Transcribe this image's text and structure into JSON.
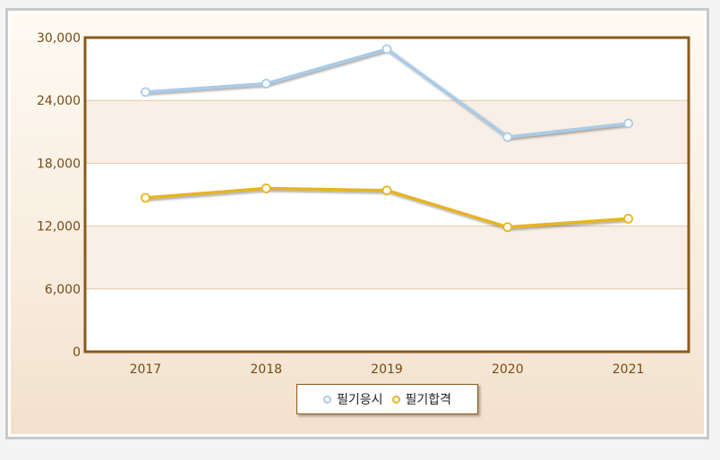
{
  "chart_data": {
    "type": "line",
    "categories": [
      "2017",
      "2018",
      "2019",
      "2020",
      "2021"
    ],
    "series": [
      {
        "name": "필기응시",
        "values": [
          24800,
          25600,
          28900,
          20500,
          21800
        ],
        "color": "#a9cbe8"
      },
      {
        "name": "필기합격",
        "values": [
          14700,
          15600,
          15400,
          11900,
          12700
        ],
        "color": "#e6b422"
      }
    ],
    "yticks": [
      "30,000",
      "24,000",
      "18,000",
      "12,000",
      "6,000",
      "0"
    ],
    "ylim": [
      0,
      30000
    ],
    "grid": true,
    "legend_position": "bottom-center",
    "colors": {
      "plot_border": "#8b5a1e",
      "band": "#f9efe6",
      "grid": "#e2c8a8"
    }
  }
}
